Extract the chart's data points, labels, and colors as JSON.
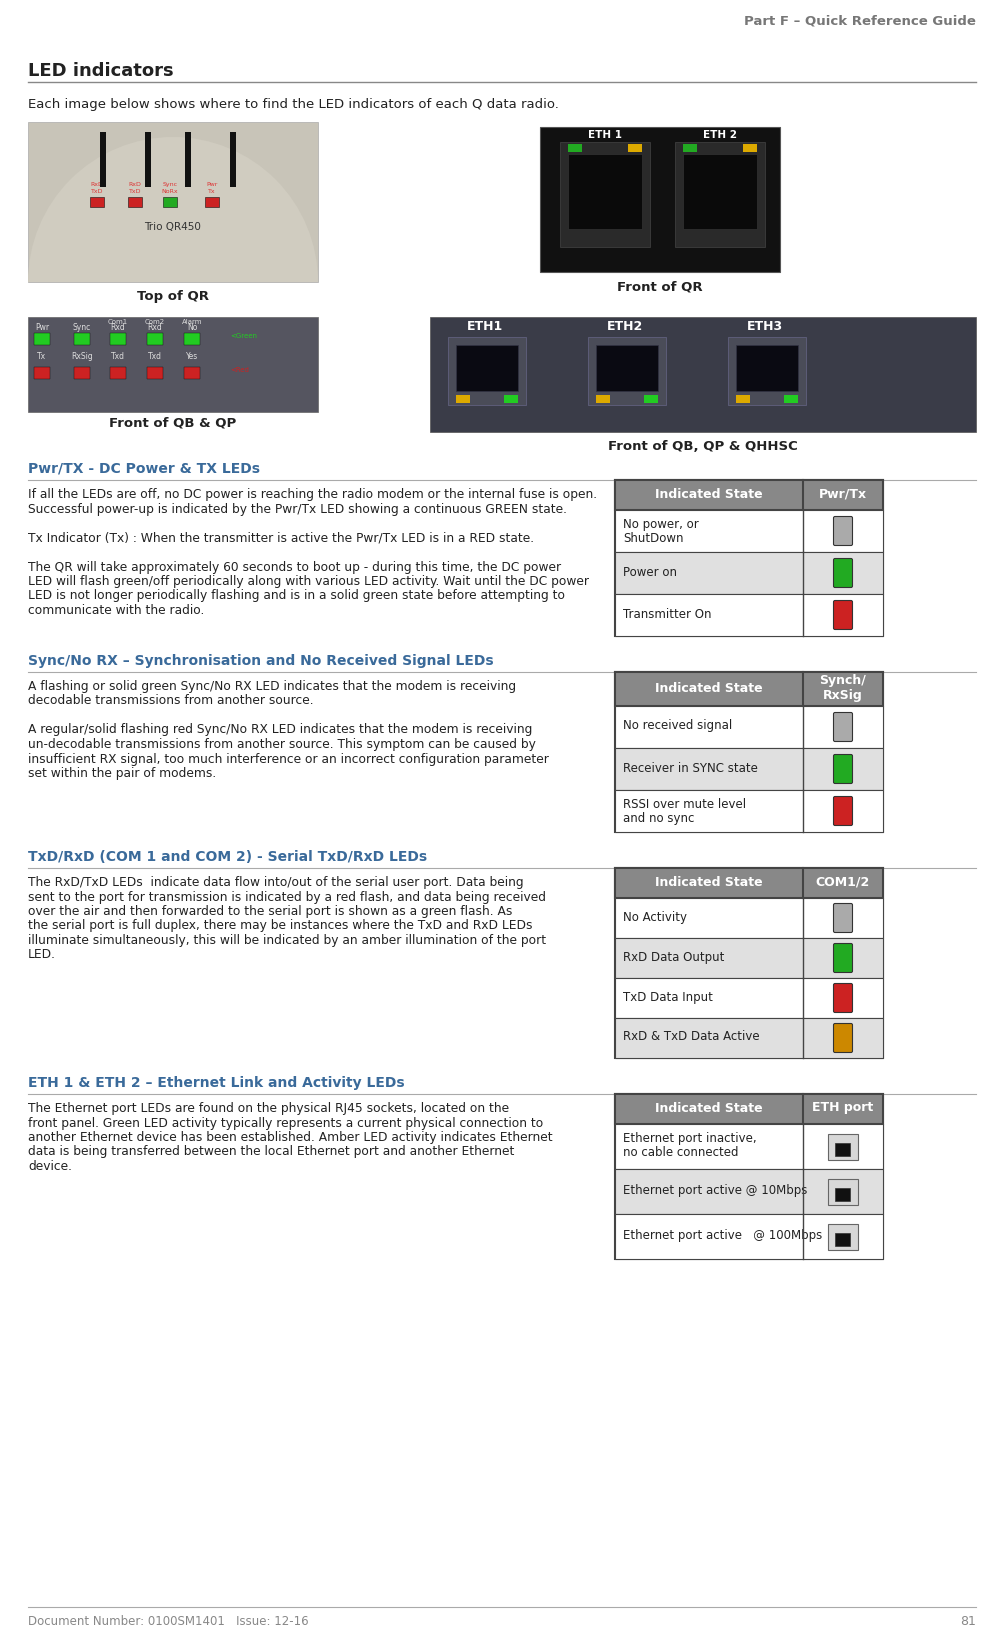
{
  "page_title": "Part F – Quick Reference Guide",
  "page_number": "81",
  "doc_number": "Document Number: 0100SM1401   Issue: 12-16",
  "section_title": "LED indicators",
  "intro_text": "Each image below shows where to find the LED indicators of each Q data radio.",
  "caption_top_qr": "Top of QR",
  "caption_front_qr": "Front of QR",
  "caption_front_qb_qp": "Front of QB & QP",
  "caption_front_qb_qp_qhhsc": "Front of QB, QP & QHHSC",
  "subsection1_title": "Pwr/TX - DC Power & TX LEDs",
  "subsection2_title": "Sync/No RX – Synchronisation and No Received Signal LEDs",
  "subsection3_title": "TxD/RxD (COM 1 and COM 2) - Serial TxD/RxD LEDs",
  "subsection4_title": "ETH 1 & ETH 2 – Ethernet Link and Activity LEDs",
  "table1_header": [
    "Indicated State",
    "Pwr/Tx"
  ],
  "table1_rows": [
    {
      "state": "No power, or\nShutDown",
      "led_color": "#aaaaaa"
    },
    {
      "state": "Power on",
      "led_color": "#22aa22"
    },
    {
      "state": "Transmitter On",
      "led_color": "#cc2222"
    }
  ],
  "table2_header": [
    "Indicated State",
    "Synch/\nRxSig"
  ],
  "table2_rows": [
    {
      "state": "No received signal",
      "led_color": "#aaaaaa"
    },
    {
      "state": "Receiver in SYNC state",
      "led_color": "#22aa22"
    },
    {
      "state": "RSSI over mute level\nand no sync",
      "led_color": "#cc2222"
    }
  ],
  "table3_header": [
    "Indicated State",
    "COM1/2"
  ],
  "table3_rows": [
    {
      "state": "No Activity",
      "led_color": "#aaaaaa"
    },
    {
      "state": "RxD Data Output",
      "led_color": "#22aa22"
    },
    {
      "state": "TxD Data Input",
      "led_color": "#cc2222"
    },
    {
      "state": "RxD & TxD Data Active",
      "led_color": "#cc8800"
    }
  ],
  "table4_header": [
    "Indicated State",
    "ETH port"
  ],
  "table4_rows": [
    {
      "state": "Ethernet port inactive,\nno cable connected"
    },
    {
      "state": "Ethernet port active @ 10Mbps"
    },
    {
      "state": "Ethernet port active   @ 100Mbps"
    }
  ],
  "bg_color": "#ffffff",
  "header_bg": "#888888",
  "table_border_color": "#444444",
  "alt_row_color": "#e0e0e0",
  "body1_lines": [
    "If all the LEDs are off, no DC power is reaching the radio modem or the internal fuse is open.",
    "Successful power-up is indicated by the Pwr/Tx LED showing a continuous GREEN state.",
    "",
    "Tx Indicator (Tx) : When the transmitter is active the Pwr/Tx LED is in a RED state.",
    "",
    "The QR will take approximately 60 seconds to boot up - during this time, the DC power",
    "LED will flash green/off periodically along with various LED activity. Wait until the DC power",
    "LED is not longer periodically flashing and is in a solid green state before attempting to",
    "communicate with the radio."
  ],
  "body2_lines": [
    "A flashing or solid green Sync/No RX LED indicates that the modem is receiving",
    "decodable transmissions from another source.",
    "",
    "A regular/solid flashing red Sync/No RX LED indicates that the modem is receiving",
    "un-decodable transmissions from another source. This symptom can be caused by",
    "insufficient RX signal, too much interference or an incorrect configuration parameter",
    "set within the pair of modems."
  ],
  "body3_lines": [
    "The RxD/TxD LEDs  indicate data flow into/out of the serial user port. Data being",
    "sent to the port for transmission is indicated by a red flash, and data being received",
    "over the air and then forwarded to the serial port is shown as a green flash. As",
    "the serial port is full duplex, there may be instances where the TxD and RxD LEDs",
    "illuminate simultaneously, this will be indicated by an amber illumination of the port",
    "LED."
  ],
  "body4_lines": [
    "The Ethernet port LEDs are found on the physical RJ45 sockets, located on the",
    "front panel. Green LED activity typically represents a current physical connection to",
    "another Ethernet device has been established. Amber LED activity indicates Ethernet",
    "data is being transferred between the local Ethernet port and another Ethernet",
    "device."
  ]
}
